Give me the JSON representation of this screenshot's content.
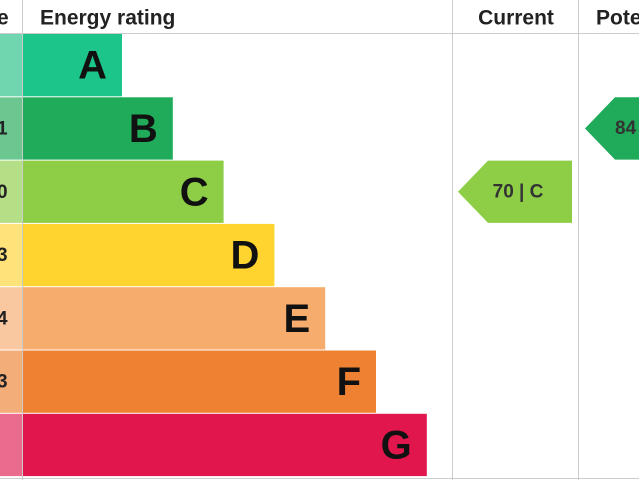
{
  "header": {
    "score": "e",
    "rating": "Energy rating",
    "current": "Current",
    "potential": "Pote"
  },
  "bands": [
    {
      "letter": "A",
      "color": "#1cc589",
      "light": "#6fd6b0"
    },
    {
      "letter": "B",
      "score": "1",
      "color": "#1fab59",
      "light": "#6cc68f"
    },
    {
      "letter": "C",
      "score": "0",
      "color": "#8dce46",
      "light": "#b5df86"
    },
    {
      "letter": "D",
      "score": "3",
      "color": "#ffd42e",
      "light": "#ffe37a"
    },
    {
      "letter": "E",
      "score": "4",
      "color": "#f6ac6c",
      "light": "#f9c8a0"
    },
    {
      "letter": "F",
      "score": "3",
      "color": "#ee8232",
      "light": "#f3ad79"
    },
    {
      "letter": "G",
      "color": "#e0164c",
      "light": "#ea6b8c"
    }
  ],
  "current": {
    "label": "70 | C",
    "band": 2
  },
  "potential": {
    "label": "84",
    "band": 1
  }
}
